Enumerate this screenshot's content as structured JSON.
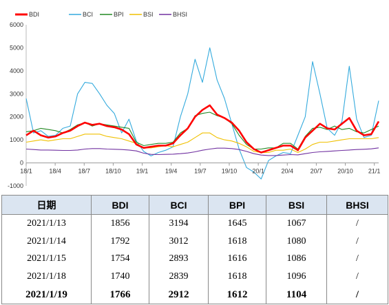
{
  "chart_data": {
    "type": "line",
    "ylim": [
      -1000,
      6000
    ],
    "yticks": [
      -1000,
      0,
      1000,
      2000,
      3000,
      4000,
      5000,
      6000
    ],
    "x_tick_labels": [
      "18/1",
      "18/4",
      "18/7",
      "18/10",
      "19/1",
      "19/4",
      "19/7",
      "19/10",
      "20/1",
      "20/4",
      "20/7",
      "20/10",
      "21/1"
    ],
    "legend_position": "top-left",
    "series": [
      {
        "name": "BDI",
        "color": "#ff0000",
        "values": [
          1200,
          1400,
          1200,
          1100,
          1150,
          1300,
          1400,
          1600,
          1750,
          1650,
          1700,
          1600,
          1550,
          1450,
          1250,
          800,
          650,
          700,
          750,
          750,
          850,
          1200,
          1500,
          2000,
          2300,
          2500,
          2100,
          1950,
          1750,
          1400,
          900,
          600,
          450,
          550,
          650,
          750,
          750,
          550,
          1100,
          1400,
          1700,
          1500,
          1450,
          1700,
          1950,
          1400,
          1200,
          1250,
          1800
        ]
      },
      {
        "name": "BCI",
        "color": "#33aadd",
        "values": [
          2800,
          1300,
          1400,
          1150,
          1200,
          1500,
          1600,
          3000,
          3500,
          3450,
          3000,
          2500,
          2150,
          1300,
          1900,
          950,
          500,
          300,
          450,
          550,
          700,
          2000,
          3000,
          4500,
          3500,
          5000,
          3600,
          2800,
          1700,
          600,
          -200,
          -400,
          -700,
          100,
          300,
          450,
          400,
          1200,
          2000,
          4400,
          3000,
          1500,
          1200,
          1800,
          4200,
          1900,
          1100,
          1200,
          2700
        ]
      },
      {
        "name": "BPI",
        "color": "#228822",
        "values": [
          1350,
          1400,
          1500,
          1450,
          1400,
          1300,
          1450,
          1650,
          1750,
          1600,
          1700,
          1650,
          1600,
          1550,
          1500,
          900,
          750,
          800,
          850,
          850,
          900,
          1300,
          1500,
          2050,
          2150,
          2200,
          2050,
          1950,
          1700,
          1200,
          800,
          600,
          600,
          650,
          650,
          850,
          850,
          600,
          1150,
          1500,
          1550,
          1450,
          1600,
          1450,
          1500,
          1350,
          1300,
          1450,
          1600
        ]
      },
      {
        "name": "BSI",
        "color": "#f0c000",
        "values": [
          900,
          950,
          1000,
          950,
          1000,
          1050,
          1050,
          1150,
          1250,
          1250,
          1250,
          1150,
          1100,
          1050,
          950,
          850,
          650,
          650,
          700,
          750,
          700,
          800,
          900,
          1100,
          1300,
          1300,
          1100,
          1000,
          950,
          850,
          700,
          500,
          450,
          450,
          550,
          550,
          600,
          450,
          600,
          800,
          900,
          900,
          950,
          1000,
          1050,
          1050,
          1050,
          1050,
          1100
        ]
      },
      {
        "name": "BHSI",
        "color": "#7030a0",
        "values": [
          600,
          580,
          560,
          560,
          550,
          540,
          540,
          560,
          600,
          620,
          620,
          600,
          590,
          580,
          560,
          520,
          420,
          370,
          360,
          370,
          380,
          400,
          430,
          480,
          550,
          600,
          640,
          640,
          620,
          580,
          500,
          400,
          340,
          320,
          320,
          340,
          360,
          350,
          400,
          450,
          480,
          500,
          520,
          540,
          560,
          580,
          590,
          610,
          650
        ]
      }
    ]
  },
  "table": {
    "headers": [
      "日期",
      "BDI",
      "BCI",
      "BPI",
      "BSI",
      "BHSI"
    ],
    "rows": [
      [
        "2021/1/13",
        "1856",
        "3194",
        "1645",
        "1067",
        "/"
      ],
      [
        "2021/1/14",
        "1792",
        "3012",
        "1618",
        "1080",
        "/"
      ],
      [
        "2021/1/15",
        "1754",
        "2893",
        "1616",
        "1086",
        "/"
      ],
      [
        "2021/1/18",
        "1740",
        "2839",
        "1618",
        "1096",
        "/"
      ],
      [
        "2021/1/19",
        "1766",
        "2912",
        "1612",
        "1104",
        "/"
      ]
    ]
  }
}
